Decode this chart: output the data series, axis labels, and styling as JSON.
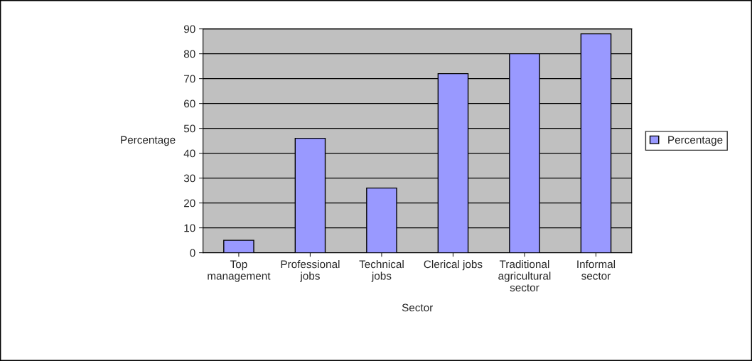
{
  "chart_data": {
    "type": "bar",
    "xlabel": "Sector",
    "ylabel": "Percentage",
    "categories": [
      "Top management",
      "Professional jobs",
      "Technical jobs",
      "Clerical jobs",
      "Traditional agricultural sector",
      "Informal sector"
    ],
    "series": [
      {
        "name": "Percentage",
        "color": "#9999ff",
        "values": [
          5,
          46,
          26,
          72,
          80,
          88
        ]
      }
    ],
    "ylim": [
      0,
      90
    ],
    "yticks": [
      0,
      10,
      20,
      30,
      40,
      50,
      60,
      70,
      80,
      90
    ],
    "grid": "y",
    "legend": "right"
  }
}
